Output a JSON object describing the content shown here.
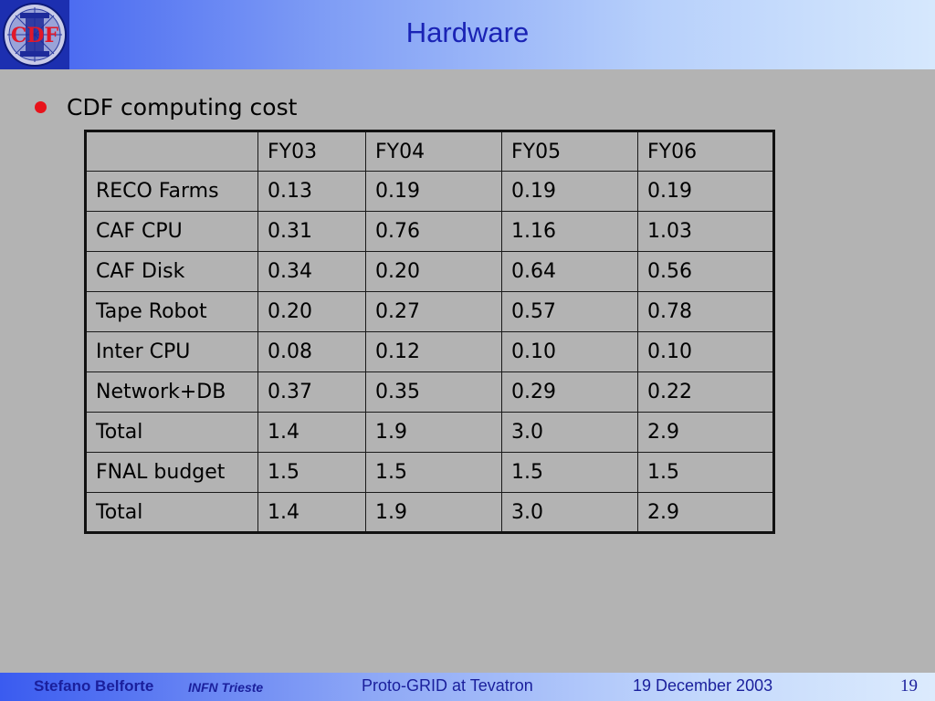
{
  "header": {
    "title": "Hardware",
    "logo_text": "CDF",
    "logo_icon": "cdf-logo-icon"
  },
  "bullet": {
    "text": "CDF computing cost"
  },
  "table": {
    "header": [
      "",
      "FY03",
      "FY04",
      "FY05",
      "FY06"
    ],
    "rows": [
      [
        "RECO Farms",
        "0.13",
        "0.19",
        "0.19",
        "0.19"
      ],
      [
        "CAF CPU",
        "0.31",
        "0.76",
        "1.16",
        "1.03"
      ],
      [
        "CAF Disk",
        "0.34",
        "0.20",
        "0.64",
        "0.56"
      ],
      [
        "Tape Robot",
        "0.20",
        "0.27",
        "0.57",
        "0.78"
      ],
      [
        "Inter CPU",
        "0.08",
        "0.12",
        "0.10",
        "0.10"
      ],
      [
        "Network+DB",
        "0.37",
        "0.35",
        "0.29",
        "0.22"
      ],
      [
        "Total",
        "1.4",
        "1.9",
        "3.0",
        "2.9"
      ],
      [
        "FNAL budget",
        "1.5",
        "1.5",
        "1.5",
        "1.5"
      ],
      [
        "Total",
        "1.4",
        "1.9",
        "3.0",
        "2.9"
      ]
    ]
  },
  "footer": {
    "author": "Stefano Belforte",
    "institution": "INFN Trieste",
    "talk": "Proto-GRID at Tevatron",
    "date": "19 December 2003",
    "page": "19"
  },
  "colors": {
    "background": "#b3b3b3",
    "title": "#1a23b5",
    "bullet": "#e8131b",
    "footer_text": "#1a1f9c"
  }
}
